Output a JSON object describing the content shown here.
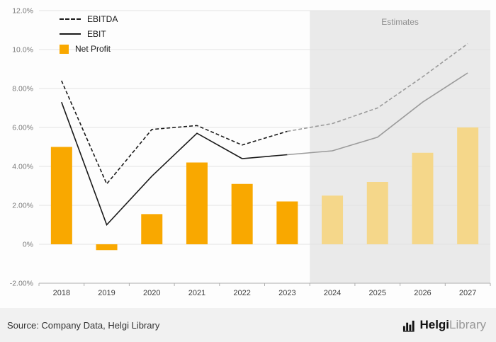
{
  "chart_data": {
    "type": "combo",
    "categories": [
      "2018",
      "2019",
      "2020",
      "2021",
      "2022",
      "2023",
      "2024",
      "2025",
      "2026",
      "2027"
    ],
    "estimate_start_index": 6,
    "estimates_label": "Estimates",
    "ylim": [
      -2,
      12
    ],
    "grid": true,
    "legend_position": "top-left",
    "yticks": [
      {
        "value": -2,
        "label": "-2.00%"
      },
      {
        "value": 0,
        "label": "0%"
      },
      {
        "value": 2,
        "label": "2.00%"
      },
      {
        "value": 4,
        "label": "4.00%"
      },
      {
        "value": 6,
        "label": "6.00%"
      },
      {
        "value": 8,
        "label": "8.00%"
      },
      {
        "value": 10,
        "label": "10.0%"
      },
      {
        "value": 12,
        "label": "12.0%"
      }
    ],
    "series": [
      {
        "name": "EBITDA",
        "type": "line",
        "dash": true,
        "values": [
          8.4,
          3.1,
          5.9,
          6.1,
          5.1,
          5.8,
          6.2,
          7.0,
          8.6,
          10.3
        ]
      },
      {
        "name": "EBIT",
        "type": "line",
        "dash": false,
        "values": [
          7.3,
          1.0,
          3.5,
          5.7,
          4.4,
          4.6,
          4.8,
          5.5,
          7.3,
          8.8
        ]
      },
      {
        "name": "Net Profit",
        "type": "bar",
        "values": [
          5.0,
          -0.3,
          1.55,
          4.2,
          3.1,
          2.2,
          2.5,
          3.2,
          4.7,
          6.0
        ]
      }
    ],
    "colors": {
      "bar": "#F9A800",
      "bar_estimate": "#F5D78A",
      "line_actual": "#1A1A1A",
      "line_estimate": "#9B9B9B",
      "grid": "#E2E2E2",
      "axis": "#ADADAD",
      "estimate_bg": "#EAEAEA",
      "estimate_text": "#8F8F8F",
      "tick_text": "#7A7A7A",
      "cat_text": "#3C3C3C"
    }
  },
  "footer": {
    "source": "Source: Company Data, Helgi Library",
    "logo_primary": "Helgi",
    "logo_secondary": "Library"
  }
}
